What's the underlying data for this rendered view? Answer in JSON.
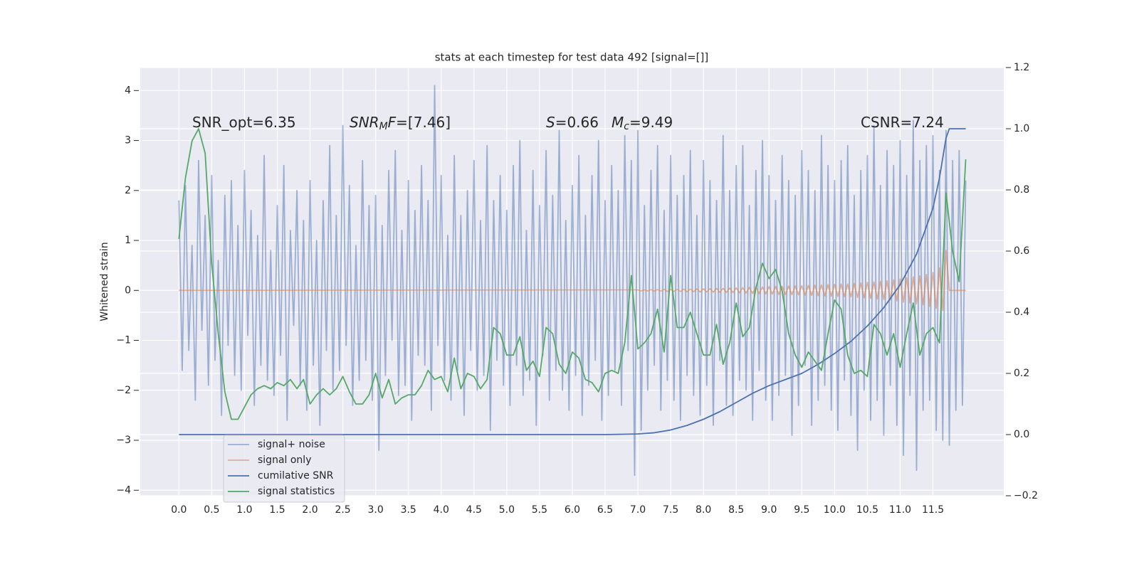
{
  "chart_data": {
    "type": "line",
    "title": "stats at each timestep for test data 492 [signal=[]]",
    "y_label": "Whitened strain",
    "xlim": [
      -0.59,
      12.58
    ],
    "ylim": [
      -4.11,
      4.46
    ],
    "y2lim": [
      -0.2,
      1.2
    ],
    "xticks": [
      {
        "value": 0,
        "label": "0.0"
      },
      0.5,
      {
        "value": 1,
        "label": "1.0"
      },
      1.5,
      {
        "value": 2,
        "label": "2.0"
      },
      2.5,
      {
        "value": 3,
        "label": "3.0"
      },
      3.5,
      {
        "value": 4,
        "label": "4.0"
      },
      4.5,
      {
        "value": 5,
        "label": "5.0"
      },
      5.5,
      {
        "value": 6,
        "label": "6.0"
      },
      6.5,
      {
        "value": 7,
        "label": "7.0"
      },
      7.5,
      {
        "value": 8,
        "label": "8.0"
      },
      8.5,
      {
        "value": 9,
        "label": "9.0"
      },
      9.5,
      {
        "value": 10,
        "label": "10.0"
      },
      10.5,
      {
        "value": 11,
        "label": "11.0"
      },
      11.5
    ],
    "yticks": [
      {
        "value": -4,
        "label": "−4"
      },
      {
        "value": -3,
        "label": "−3"
      },
      {
        "value": -2,
        "label": "−2"
      },
      {
        "value": -1,
        "label": "−1"
      },
      0,
      1,
      2,
      3,
      4
    ],
    "y2ticks": [
      {
        "value": -0.2,
        "label": "−0.2"
      },
      {
        "value": 0,
        "label": "0.0"
      },
      0.2,
      0.4,
      0.6,
      0.8,
      {
        "value": 1,
        "label": "1.0"
      },
      1.2
    ],
    "grid": true,
    "legend": "lower left",
    "annotations": [
      [
        {
          "text": "SNR_opt=6.35"
        }
      ],
      [
        {
          "text": "SNR",
          "math": true
        },
        {
          "text": "M",
          "math": true,
          "sub": true
        },
        {
          "text": "F",
          "math": true
        },
        {
          "text": "=[7.46]"
        }
      ],
      [
        {
          "text": "S",
          "math": true
        },
        {
          "text": "=0.66"
        }
      ],
      [
        {
          "text": "M",
          "math": true
        },
        {
          "text": "c",
          "math": true,
          "sub": true
        },
        {
          "text": "=9.49"
        }
      ],
      [
        {
          "text": "CSNR=7.24"
        }
      ]
    ],
    "series": [
      {
        "name": "signal+ noise",
        "color": "#4c72b0",
        "opacity": 0.5,
        "axis": "y",
        "x": [
          0,
          0.05,
          0.1,
          0.15,
          0.2,
          0.25,
          0.3,
          0.35,
          0.4,
          0.45,
          0.5,
          0.55,
          0.6,
          0.65,
          0.7,
          0.75,
          0.8,
          0.85,
          0.9,
          0.95,
          1,
          1.05,
          1.1,
          1.15,
          1.2,
          1.25,
          1.3,
          1.35,
          1.4,
          1.45,
          1.5,
          1.55,
          1.6,
          1.65,
          1.7,
          1.75,
          1.8,
          1.85,
          1.9,
          1.95,
          2,
          2.05,
          2.1,
          2.15,
          2.2,
          2.25,
          2.3,
          2.35,
          2.4,
          2.45,
          2.5,
          2.55,
          2.6,
          2.65,
          2.7,
          2.75,
          2.8,
          2.85,
          2.9,
          2.95,
          3,
          3.05,
          3.1,
          3.15,
          3.2,
          3.25,
          3.3,
          3.35,
          3.4,
          3.45,
          3.5,
          3.55,
          3.6,
          3.65,
          3.7,
          3.75,
          3.8,
          3.85,
          3.9,
          3.95,
          4,
          4.05,
          4.1,
          4.15,
          4.2,
          4.25,
          4.3,
          4.35,
          4.4,
          4.45,
          4.5,
          4.55,
          4.6,
          4.65,
          4.7,
          4.75,
          4.8,
          4.85,
          4.9,
          4.95,
          5,
          5.05,
          5.1,
          5.15,
          5.2,
          5.25,
          5.3,
          5.35,
          5.4,
          5.45,
          5.5,
          5.55,
          5.6,
          5.65,
          5.7,
          5.75,
          5.8,
          5.85,
          5.9,
          5.95,
          6,
          6.05,
          6.1,
          6.15,
          6.2,
          6.25,
          6.3,
          6.35,
          6.4,
          6.45,
          6.5,
          6.55,
          6.6,
          6.65,
          6.7,
          6.75,
          6.8,
          6.85,
          6.9,
          6.95,
          7,
          7.05,
          7.1,
          7.15,
          7.2,
          7.25,
          7.3,
          7.35,
          7.4,
          7.45,
          7.5,
          7.55,
          7.6,
          7.65,
          7.7,
          7.75,
          7.8,
          7.85,
          7.9,
          7.95,
          8,
          8.05,
          8.1,
          8.15,
          8.2,
          8.25,
          8.3,
          8.35,
          8.4,
          8.45,
          8.5,
          8.55,
          8.6,
          8.65,
          8.7,
          8.75,
          8.8,
          8.85,
          8.9,
          8.95,
          9,
          9.05,
          9.1,
          9.15,
          9.2,
          9.25,
          9.3,
          9.35,
          9.4,
          9.45,
          9.5,
          9.55,
          9.6,
          9.65,
          9.7,
          9.75,
          9.8,
          9.85,
          9.9,
          9.95,
          10,
          10.05,
          10.1,
          10.15,
          10.2,
          10.25,
          10.3,
          10.35,
          10.4,
          10.45,
          10.5,
          10.55,
          10.6,
          10.65,
          10.7,
          10.75,
          10.8,
          10.85,
          10.9,
          10.95,
          11,
          11.05,
          11.1,
          11.15,
          11.2,
          11.25,
          11.3,
          11.35,
          11.4,
          11.45,
          11.5,
          11.55,
          11.6,
          11.65,
          11.7,
          11.75,
          11.8,
          11.85,
          11.9,
          11.95,
          12
        ],
        "values": [
          1.8,
          -1.6,
          2.1,
          -1.2,
          0.9,
          -2.2,
          2.6,
          -0.8,
          1.5,
          -1.9,
          2.3,
          -1.4,
          0.6,
          -2.5,
          1.9,
          -1.1,
          2.2,
          -1.7,
          1.3,
          -2.0,
          2.4,
          -0.9,
          1.6,
          -2.3,
          1.1,
          -1.5,
          2.7,
          -1.8,
          0.8,
          -2.1,
          1.7,
          -1.3,
          2.5,
          -2.6,
          1.2,
          -0.7,
          2.0,
          -1.9,
          1.4,
          -2.4,
          2.2,
          -1.5,
          1.0,
          -2.7,
          1.8,
          -1.2,
          2.9,
          -2.0,
          1.5,
          -1.6,
          3.3,
          -1.1,
          2.1,
          -2.3,
          0.9,
          -1.8,
          2.6,
          -1.4,
          1.7,
          -2.2,
          1.9,
          -3.2,
          1.3,
          -1.7,
          2.4,
          -1.0,
          2.8,
          -2.1,
          1.2,
          -1.9,
          2.2,
          -2.6,
          1.6,
          -1.3,
          2.5,
          -1.5,
          1.8,
          -2.4,
          4.1,
          -1.1,
          2.3,
          -1.8,
          1.1,
          -2.2,
          2.7,
          -1.6,
          1.5,
          -2.5,
          2.0,
          -1.2,
          2.6,
          -2.0,
          1.4,
          -1.7,
          2.9,
          -2.8,
          1.8,
          -1.4,
          2.3,
          -1.9,
          1.6,
          -2.3,
          2.5,
          -1.5,
          3.0,
          -2.1,
          1.2,
          -1.8,
          2.4,
          -2.7,
          1.7,
          -1.3,
          2.8,
          -2.2,
          1.9,
          -1.6,
          3.2,
          -2.0,
          1.4,
          -2.4,
          2.1,
          -1.7,
          2.7,
          -2.5,
          1.5,
          -1.9,
          2.3,
          -1.4,
          3.0,
          -2.6,
          1.8,
          -2.1,
          2.5,
          -1.6,
          2.0,
          -2.3,
          3.1,
          -1.2,
          2.6,
          -3.7,
          3.2,
          -2.8,
          1.7,
          -2.0,
          2.4,
          -1.5,
          2.9,
          -2.4,
          1.6,
          -1.8,
          2.7,
          -2.2,
          1.9,
          -2.6,
          2.3,
          -1.7,
          2.8,
          -2.1,
          1.5,
          -2.5,
          2.6,
          -1.9,
          2.2,
          -2.7,
          1.8,
          -1.4,
          3.1,
          -2.3,
          2.0,
          -2.5,
          2.5,
          -1.8,
          2.9,
          -2.0,
          1.7,
          -2.6,
          2.4,
          -1.6,
          3.0,
          -2.2,
          2.3,
          -2.6,
          1.8,
          -2.1,
          2.7,
          -1.7,
          2.2,
          -2.9,
          1.9,
          -2.3,
          2.8,
          -1.5,
          2.4,
          -2.7,
          2.0,
          -2.2,
          3.1,
          -1.9,
          2.5,
          -2.4,
          2.2,
          -2.8,
          2.6,
          -1.8,
          2.9,
          -2.5,
          1.9,
          -3.2,
          2.4,
          -2.0,
          2.7,
          -2.6,
          3.3,
          -2.2,
          2.1,
          -2.9,
          2.8,
          -1.9,
          2.5,
          -2.7,
          3.0,
          -3.3,
          2.3,
          -2.1,
          3.4,
          -3.6,
          2.6,
          -2.4,
          2.9,
          -2.2,
          3.1,
          -2.8,
          2.4,
          -3.0,
          3.2,
          -3.1,
          2.6,
          -2.4,
          2.8,
          -2.3,
          2.2
        ]
      },
      {
        "name": "signal only",
        "color": "#dd8452",
        "opacity": 0.6,
        "axis": "y",
        "x": [
          0,
          7,
          7.05,
          7.1,
          7.15,
          7.2,
          7.25,
          7.3,
          7.35,
          7.4,
          7.45,
          7.5,
          7.55,
          7.6,
          7.65,
          7.7,
          7.75,
          7.8,
          7.85,
          7.9,
          7.95,
          8,
          8.05,
          8.1,
          8.15,
          8.2,
          8.25,
          8.3,
          8.35,
          8.4,
          8.45,
          8.5,
          8.55,
          8.6,
          8.65,
          8.7,
          8.75,
          8.8,
          8.85,
          8.9,
          8.95,
          9,
          9.05,
          9.1,
          9.15,
          9.2,
          9.25,
          9.3,
          9.35,
          9.4,
          9.45,
          9.5,
          9.55,
          9.6,
          9.65,
          9.7,
          9.75,
          9.8,
          9.85,
          9.9,
          9.95,
          10,
          10.05,
          10.1,
          10.15,
          10.2,
          10.25,
          10.3,
          10.35,
          10.4,
          10.45,
          10.5,
          10.55,
          10.6,
          10.65,
          10.7,
          10.75,
          10.8,
          10.85,
          10.9,
          10.95,
          11,
          11.05,
          11.1,
          11.15,
          11.2,
          11.25,
          11.3,
          11.35,
          11.4,
          11.45,
          11.5,
          11.55,
          11.6,
          11.65,
          11.7,
          11.75,
          11.8,
          11.85,
          11.9,
          11.95,
          12
        ],
        "values": [
          0,
          0.01,
          -0.01,
          0.01,
          -0.01,
          0.015,
          -0.015,
          0.015,
          -0.015,
          0.02,
          -0.02,
          0.02,
          -0.02,
          0.02,
          -0.02,
          0.025,
          -0.025,
          0.025,
          -0.025,
          0.03,
          -0.03,
          0.03,
          -0.03,
          0.035,
          -0.035,
          0.04,
          -0.04,
          0.04,
          -0.04,
          0.045,
          -0.045,
          0.05,
          -0.05,
          0.055,
          -0.055,
          0.06,
          -0.06,
          0.065,
          -0.065,
          0.07,
          -0.07,
          0.075,
          -0.075,
          0.08,
          -0.08,
          0.08,
          -0.08,
          0.085,
          -0.085,
          0.09,
          -0.09,
          0.095,
          -0.095,
          0.1,
          -0.1,
          0.105,
          -0.105,
          0.11,
          -0.11,
          0.115,
          -0.115,
          0.12,
          -0.12,
          0.125,
          -0.125,
          0.13,
          -0.13,
          0.14,
          -0.14,
          0.15,
          -0.15,
          0.16,
          -0.16,
          0.17,
          -0.17,
          0.18,
          -0.18,
          0.19,
          -0.19,
          0.21,
          -0.21,
          0.23,
          -0.23,
          0.25,
          -0.25,
          0.27,
          -0.27,
          0.29,
          -0.29,
          0.32,
          -0.32,
          0.36,
          -0.36,
          0.45,
          -0.4,
          0.8,
          0,
          0,
          0,
          0,
          0,
          0
        ]
      },
      {
        "name": "cumilative SNR",
        "color": "#4c72b0",
        "opacity": 1,
        "axis": "y2",
        "x": [
          0,
          6.5,
          7,
          7.25,
          7.5,
          7.75,
          8,
          8.25,
          8.5,
          8.75,
          9,
          9.25,
          9.5,
          9.75,
          10,
          10.25,
          10.5,
          10.75,
          11,
          11.25,
          11.5,
          11.6,
          11.7,
          11.75,
          12
        ],
        "values": [
          0,
          0,
          0.002,
          0.006,
          0.015,
          0.03,
          0.05,
          0.075,
          0.105,
          0.135,
          0.16,
          0.18,
          0.2,
          0.23,
          0.265,
          0.305,
          0.355,
          0.415,
          0.49,
          0.59,
          0.74,
          0.84,
          0.97,
          1.0,
          1.0
        ]
      },
      {
        "name": "signal statistics",
        "color": "#55a868",
        "opacity": 1,
        "axis": "y2",
        "x": [
          0,
          0.1,
          0.2,
          0.3,
          0.4,
          0.5,
          0.6,
          0.7,
          0.8,
          0.9,
          1,
          1.1,
          1.2,
          1.3,
          1.4,
          1.5,
          1.6,
          1.7,
          1.8,
          1.9,
          2,
          2.1,
          2.2,
          2.3,
          2.4,
          2.5,
          2.6,
          2.7,
          2.8,
          2.9,
          3,
          3.1,
          3.2,
          3.3,
          3.4,
          3.5,
          3.6,
          3.7,
          3.8,
          3.9,
          4,
          4.1,
          4.2,
          4.3,
          4.4,
          4.5,
          4.6,
          4.7,
          4.8,
          4.9,
          5,
          5.1,
          5.2,
          5.3,
          5.4,
          5.5,
          5.6,
          5.7,
          5.8,
          5.9,
          6,
          6.1,
          6.2,
          6.3,
          6.4,
          6.5,
          6.6,
          6.7,
          6.8,
          6.9,
          7,
          7.1,
          7.2,
          7.3,
          7.4,
          7.5,
          7.6,
          7.7,
          7.8,
          7.9,
          8,
          8.1,
          8.2,
          8.3,
          8.4,
          8.5,
          8.6,
          8.7,
          8.8,
          8.9,
          9,
          9.1,
          9.2,
          9.3,
          9.4,
          9.5,
          9.6,
          9.7,
          9.8,
          9.9,
          10,
          10.1,
          10.2,
          10.3,
          10.4,
          10.5,
          10.6,
          10.7,
          10.8,
          10.9,
          11,
          11.1,
          11.2,
          11.3,
          11.4,
          11.5,
          11.6,
          11.7,
          11.8,
          11.9,
          12
        ],
        "values": [
          0.64,
          0.84,
          0.96,
          1.0,
          0.92,
          0.56,
          0.33,
          0.14,
          0.05,
          0.05,
          0.09,
          0.13,
          0.15,
          0.16,
          0.15,
          0.17,
          0.16,
          0.18,
          0.15,
          0.18,
          0.1,
          0.13,
          0.15,
          0.13,
          0.15,
          0.19,
          0.14,
          0.1,
          0.1,
          0.13,
          0.2,
          0.12,
          0.18,
          0.1,
          0.12,
          0.13,
          0.13,
          0.16,
          0.21,
          0.18,
          0.19,
          0.14,
          0.25,
          0.15,
          0.2,
          0.19,
          0.15,
          0.18,
          0.35,
          0.33,
          0.26,
          0.26,
          0.32,
          0.21,
          0.24,
          0.19,
          0.35,
          0.33,
          0.23,
          0.2,
          0.27,
          0.25,
          0.18,
          0.17,
          0.14,
          0.2,
          0.21,
          0.2,
          0.3,
          0.52,
          0.28,
          0.3,
          0.33,
          0.41,
          0.27,
          0.52,
          0.35,
          0.35,
          0.4,
          0.33,
          0.26,
          0.26,
          0.36,
          0.23,
          0.3,
          0.43,
          0.32,
          0.35,
          0.48,
          0.56,
          0.51,
          0.54,
          0.47,
          0.33,
          0.26,
          0.22,
          0.27,
          0.24,
          0.21,
          0.33,
          0.44,
          0.41,
          0.26,
          0.2,
          0.21,
          0.19,
          0.36,
          0.33,
          0.26,
          0.33,
          0.22,
          0.33,
          0.43,
          0.26,
          0.33,
          0.35,
          0.3,
          0.79,
          0.6,
          0.5,
          0.9
        ]
      }
    ]
  }
}
